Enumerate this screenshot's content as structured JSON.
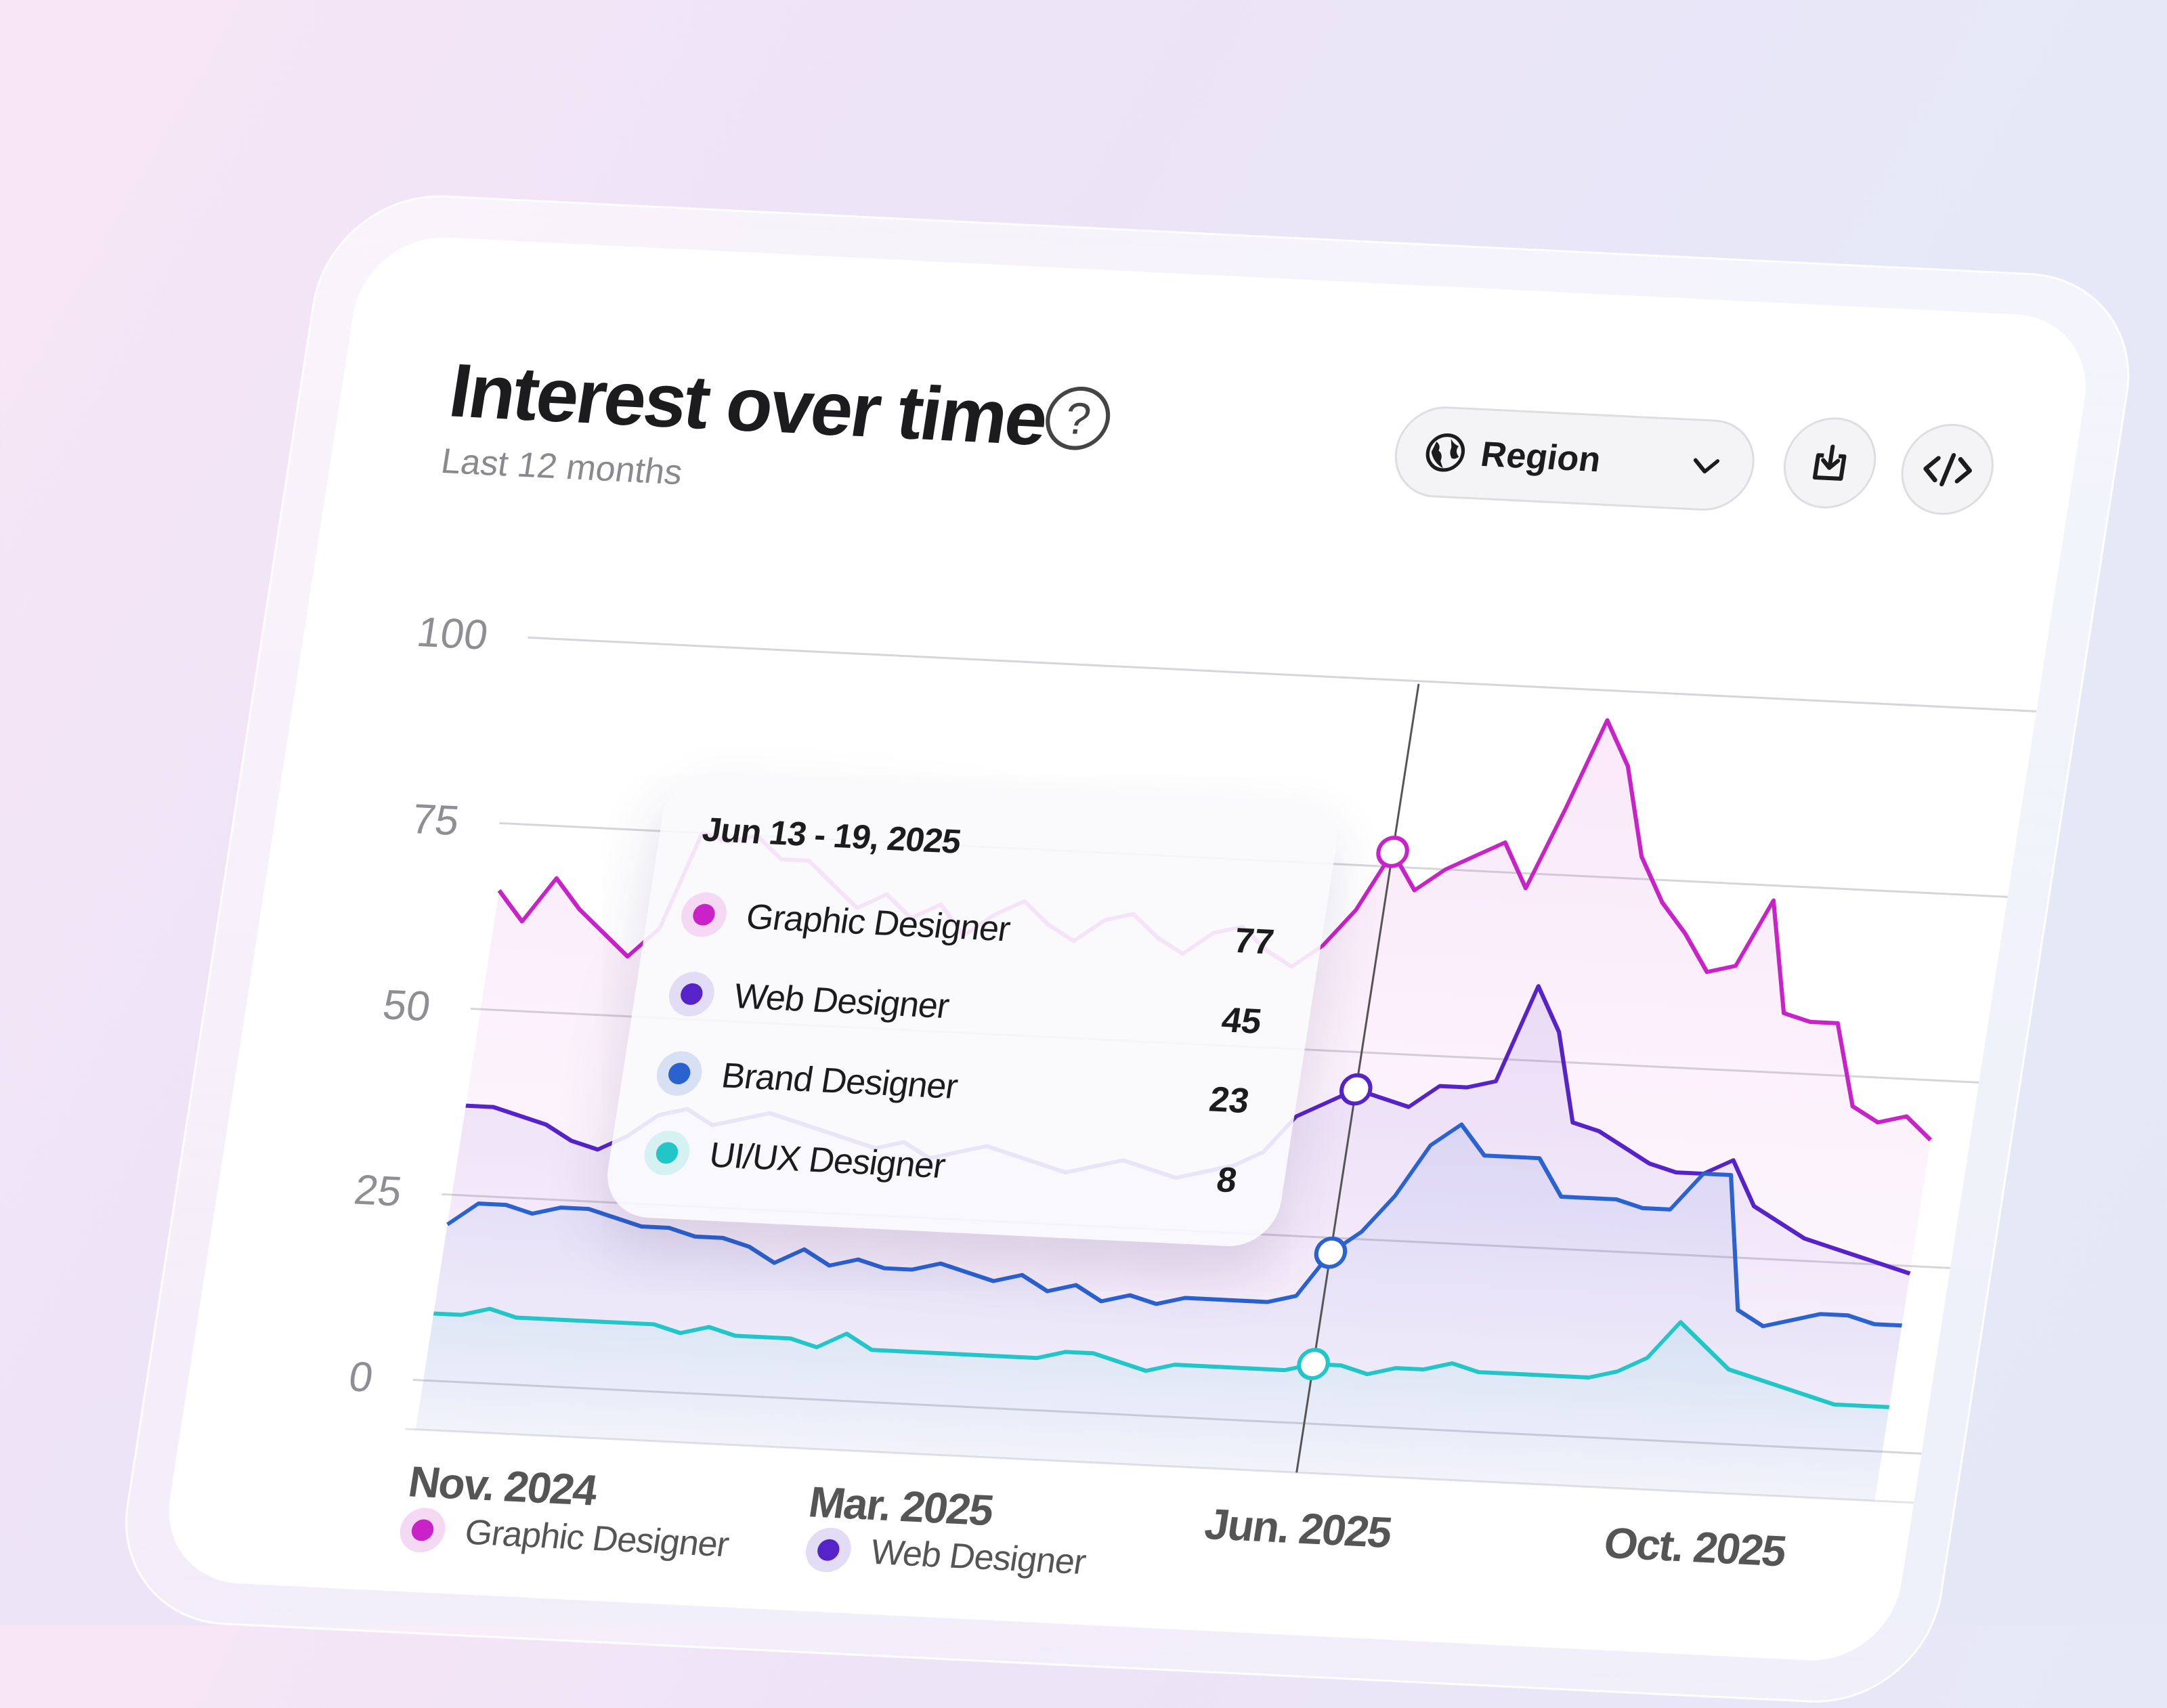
{
  "header": {
    "title": "Interest over time",
    "subtitle": "Last 12 months",
    "help_icon": "question-circle-icon"
  },
  "controls": {
    "region_label": "Region",
    "region_icon": "globe-icon",
    "download_icon": "download-icon",
    "embed_icon": "code-icon"
  },
  "tooltip": {
    "date": "Jun 13 - 19, 2025",
    "rows": [
      {
        "name": "Graphic Designer",
        "value": "77"
      },
      {
        "name": "Web Designer",
        "value": "45"
      },
      {
        "name": "Brand Designer",
        "value": "23"
      },
      {
        "name": "UI/UX Designer",
        "value": "8"
      }
    ]
  },
  "legend": [
    {
      "name": "Graphic Designer"
    },
    {
      "name": "Web Designer"
    }
  ],
  "colors": {
    "graphic": "#c822c8",
    "web": "#5523c8",
    "brand": "#2a62d0",
    "uiux": "#22c5c8"
  },
  "chart_data": {
    "type": "line",
    "title": "Interest over time",
    "subtitle": "Last 12 months",
    "ylim": [
      0,
      100
    ],
    "yticks": [
      "100",
      "75",
      "50",
      "25",
      "0"
    ],
    "xtick_labels": [
      "Nov. 2024",
      "Mar. 2025",
      "Jun. 2025",
      "Oct. 2025"
    ],
    "grid": true,
    "highlight": {
      "label": "Jun 13 - 19, 2025",
      "index": 32
    },
    "series": [
      {
        "name": "Graphic Designer",
        "color": "#c822c8",
        "values": [
          66,
          62,
          68,
          64,
          61,
          58,
          62,
          75,
          74,
          75,
          72,
          72,
          69,
          66,
          68,
          65,
          67,
          63,
          66,
          68,
          65,
          63,
          66,
          67,
          64,
          62,
          65,
          66,
          63,
          61,
          64,
          69,
          77,
          72,
          75,
          77,
          79,
          73,
          84,
          96,
          90,
          78,
          72,
          68,
          63,
          64,
          73,
          58,
          57,
          57,
          46,
          44,
          45,
          42
        ]
      },
      {
        "name": "Web Designer",
        "color": "#5523c8",
        "values": [
          37,
          37,
          36,
          35,
          33,
          32,
          34,
          37,
          38,
          36,
          37,
          38,
          37,
          36,
          35,
          34,
          35,
          33,
          34,
          35,
          34,
          33,
          32,
          33,
          34,
          33,
          32,
          33,
          34,
          36,
          41,
          43,
          45,
          44,
          43,
          46,
          46,
          47,
          60,
          54,
          42,
          41,
          39,
          37,
          36,
          36,
          38,
          32,
          30,
          28,
          27,
          26,
          25,
          24
        ]
      },
      {
        "name": "Brand Designer",
        "color": "#2a62d0",
        "values": [
          21,
          24,
          24,
          23,
          24,
          24,
          23,
          22,
          22,
          21,
          21,
          20,
          18,
          20,
          18,
          19,
          18,
          18,
          19,
          18,
          17,
          18,
          16,
          17,
          15,
          16,
          15,
          16,
          16,
          16,
          16,
          17,
          23,
          26,
          31,
          38,
          41,
          37,
          37,
          37,
          32,
          32,
          32,
          31,
          31,
          36,
          36,
          18,
          16,
          17,
          18,
          18,
          17,
          17
        ]
      },
      {
        "name": "UI/UX Designer",
        "color": "#22c5c8",
        "values": [
          9,
          9,
          10,
          9,
          9,
          9,
          9,
          9,
          9,
          8,
          9,
          8,
          8,
          8,
          7,
          9,
          7,
          7,
          7,
          7,
          7,
          7,
          7,
          8,
          8,
          7,
          6,
          7,
          7,
          7,
          7,
          7,
          8,
          8,
          7,
          8,
          8,
          9,
          8,
          8,
          8,
          8,
          8,
          9,
          11,
          16,
          13,
          10,
          9,
          8,
          7,
          6,
          6,
          6
        ]
      }
    ]
  }
}
